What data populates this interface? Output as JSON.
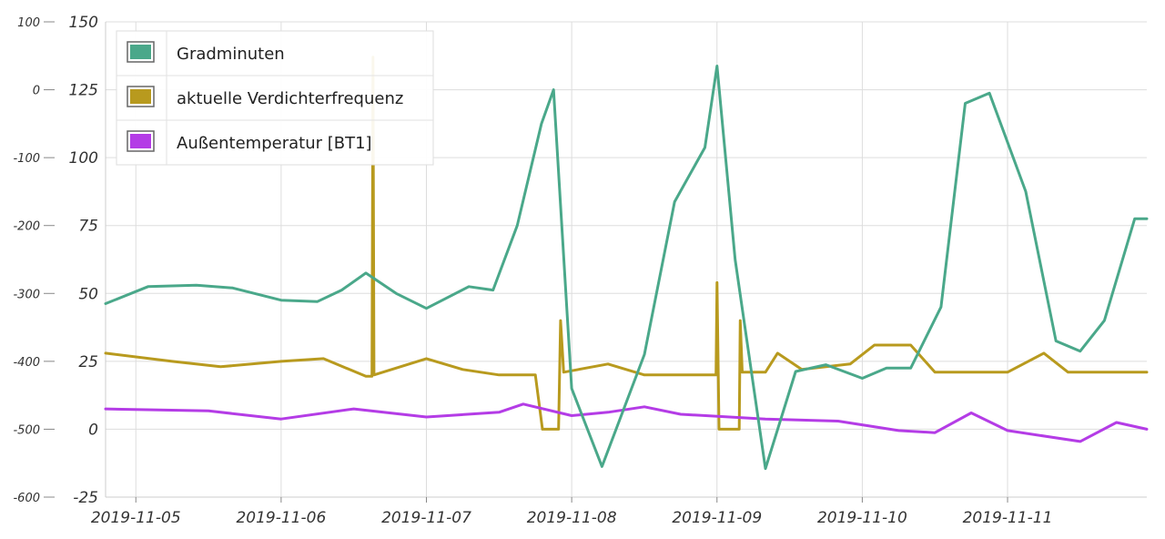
{
  "chart_data": {
    "type": "line",
    "axes": {
      "y_left": {
        "min": -600,
        "max": 100,
        "ticks": [
          100,
          0,
          -100,
          -200,
          -300,
          -400,
          -500,
          -600
        ]
      },
      "y_right": {
        "min": -25,
        "max": 150,
        "ticks": [
          150,
          125,
          100,
          75,
          50,
          25,
          0,
          -25
        ]
      },
      "x": {
        "start": "2019-11-04T19:00",
        "end": "2019-11-11T23:00",
        "ticks": [
          "2019-11-05",
          "2019-11-06",
          "2019-11-07",
          "2019-11-08",
          "2019-11-09",
          "2019-11-10",
          "2019-11-11"
        ]
      }
    },
    "grid": true,
    "legend_position": "top-left",
    "series": [
      {
        "name": "Gradminuten",
        "color": "#4aa88a",
        "axis": "left",
        "points": [
          [
            "2019-11-04T19:00",
            -315
          ],
          [
            "2019-11-05T02:00",
            -290
          ],
          [
            "2019-11-05T10:00",
            -288
          ],
          [
            "2019-11-05T16:00",
            -292
          ],
          [
            "2019-11-06T00:00",
            -310
          ],
          [
            "2019-11-06T06:00",
            -312
          ],
          [
            "2019-11-06T10:00",
            -295
          ],
          [
            "2019-11-06T14:00",
            -270
          ],
          [
            "2019-11-06T19:00",
            -300
          ],
          [
            "2019-11-07T00:00",
            -322
          ],
          [
            "2019-11-07T07:00",
            -290
          ],
          [
            "2019-11-07T11:00",
            -295
          ],
          [
            "2019-11-07T15:00",
            -200
          ],
          [
            "2019-11-07T19:00",
            -50
          ],
          [
            "2019-11-07T21:00",
            0
          ],
          [
            "2019-11-08T00:00",
            -440
          ],
          [
            "2019-11-08T05:00",
            -555
          ],
          [
            "2019-11-08T12:00",
            -390
          ],
          [
            "2019-11-08T17:00",
            -165
          ],
          [
            "2019-11-08T22:00",
            -85
          ],
          [
            "2019-11-09T00:00",
            35
          ],
          [
            "2019-11-09T03:00",
            -250
          ],
          [
            "2019-11-09T08:00",
            -558
          ],
          [
            "2019-11-09T13:00",
            -415
          ],
          [
            "2019-11-09T18:00",
            -405
          ],
          [
            "2019-11-10T00:00",
            -425
          ],
          [
            "2019-11-10T04:00",
            -410
          ],
          [
            "2019-11-10T08:00",
            -410
          ],
          [
            "2019-11-10T13:00",
            -320
          ],
          [
            "2019-11-10T17:00",
            -20
          ],
          [
            "2019-11-10T21:00",
            -5
          ],
          [
            "2019-11-11T03:00",
            -150
          ],
          [
            "2019-11-11T08:00",
            -370
          ],
          [
            "2019-11-11T12:00",
            -385
          ],
          [
            "2019-11-11T16:00",
            -340
          ],
          [
            "2019-11-11T21:00",
            -190
          ],
          [
            "2019-11-11T23:00",
            -190
          ]
        ]
      },
      {
        "name": "aktuelle Verdichterfrequenz",
        "color": "#b89a1e",
        "axis": "right",
        "points": [
          [
            "2019-11-04T19:00",
            28
          ],
          [
            "2019-11-05T06:00",
            25
          ],
          [
            "2019-11-05T14:00",
            23
          ],
          [
            "2019-11-06T00:00",
            25
          ],
          [
            "2019-11-06T07:00",
            26
          ],
          [
            "2019-11-06T14:00",
            19.5
          ],
          [
            "2019-11-06T15:00",
            19.5
          ],
          [
            "2019-11-06T15:10",
            137
          ],
          [
            "2019-11-06T15:20",
            20
          ],
          [
            "2019-11-07T00:00",
            26
          ],
          [
            "2019-11-07T06:00",
            22
          ],
          [
            "2019-11-07T12:00",
            20
          ],
          [
            "2019-11-07T18:00",
            20
          ],
          [
            "2019-11-07T19:10",
            0
          ],
          [
            "2019-11-07T21:50",
            0
          ],
          [
            "2019-11-07T22:10",
            40
          ],
          [
            "2019-11-07T22:40",
            21
          ],
          [
            "2019-11-08T06:00",
            24
          ],
          [
            "2019-11-08T12:00",
            20
          ],
          [
            "2019-11-08T23:50",
            20
          ],
          [
            "2019-11-09T00:00",
            54
          ],
          [
            "2019-11-09T00:20",
            0
          ],
          [
            "2019-11-09T03:40",
            0
          ],
          [
            "2019-11-09T03:50",
            40
          ],
          [
            "2019-11-09T04:10",
            21
          ],
          [
            "2019-11-09T08:00",
            21
          ],
          [
            "2019-11-09T10:00",
            28
          ],
          [
            "2019-11-09T14:00",
            22
          ],
          [
            "2019-11-09T22:00",
            24
          ],
          [
            "2019-11-10T02:00",
            31
          ],
          [
            "2019-11-10T08:00",
            31
          ],
          [
            "2019-11-10T12:00",
            21
          ],
          [
            "2019-11-11T00:00",
            21
          ],
          [
            "2019-11-11T06:00",
            28
          ],
          [
            "2019-11-11T10:00",
            21
          ],
          [
            "2019-11-11T23:00",
            21
          ]
        ]
      },
      {
        "name": "Außentemperatur [BT1]",
        "color": "#b43ce6",
        "axis": "left",
        "points": [
          [
            "2019-11-04T19:00",
            -470
          ],
          [
            "2019-11-05T12:00",
            -473
          ],
          [
            "2019-11-06T00:00",
            -485
          ],
          [
            "2019-11-06T12:00",
            -470
          ],
          [
            "2019-11-07T00:00",
            -482
          ],
          [
            "2019-11-07T12:00",
            -475
          ],
          [
            "2019-11-07T16:00",
            -463
          ],
          [
            "2019-11-08T00:00",
            -480
          ],
          [
            "2019-11-08T06:00",
            -475
          ],
          [
            "2019-11-08T12:00",
            -467
          ],
          [
            "2019-11-08T18:00",
            -478
          ],
          [
            "2019-11-09T08:00",
            -485
          ],
          [
            "2019-11-09T20:00",
            -488
          ],
          [
            "2019-11-10T06:00",
            -502
          ],
          [
            "2019-11-10T12:00",
            -505
          ],
          [
            "2019-11-10T18:00",
            -476
          ],
          [
            "2019-11-11T00:00",
            -502
          ],
          [
            "2019-11-11T12:00",
            -518
          ],
          [
            "2019-11-11T18:00",
            -490
          ],
          [
            "2019-11-11T23:00",
            -500
          ]
        ]
      }
    ]
  }
}
